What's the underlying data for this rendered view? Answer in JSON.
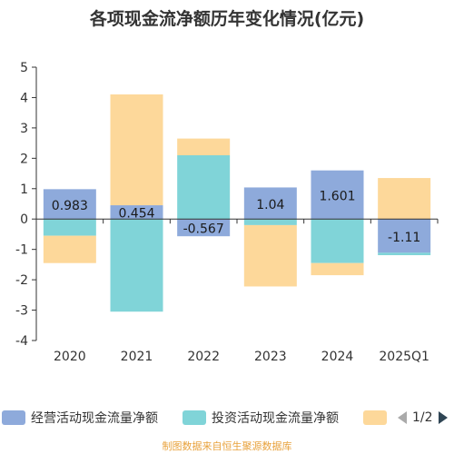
{
  "chart_data": {
    "type": "bar",
    "stacked": true,
    "title": "各项现金流净额历年变化情况(亿元)",
    "ylabel": "亿元",
    "categories": [
      "2020",
      "2021",
      "2022",
      "2023",
      "2024",
      "2025Q1"
    ],
    "ylim": [
      -4,
      5
    ],
    "yticks": [
      5,
      4,
      3,
      2,
      1,
      0,
      -1,
      -2,
      -3,
      -4
    ],
    "grid": false,
    "legend_position": "bottom",
    "series": [
      {
        "name": "经营活动现金流量净额",
        "color": "#8eaadb",
        "values": [
          0.983,
          0.454,
          -0.567,
          1.04,
          1.601,
          -1.11
        ],
        "show_labels": true
      },
      {
        "name": "投资活动现金流量净额",
        "color": "#80d4d8",
        "values": [
          -0.55,
          -3.05,
          2.1,
          -0.2,
          -1.45,
          -0.08
        ],
        "show_labels": false
      },
      {
        "name": "",
        "color": "#fdd89a",
        "values": [
          -0.9,
          3.65,
          0.55,
          -2.02,
          -0.4,
          1.35
        ],
        "show_labels": false
      }
    ],
    "legend_page": "1/2"
  },
  "source": "制图数据来自恒生聚源数据库"
}
